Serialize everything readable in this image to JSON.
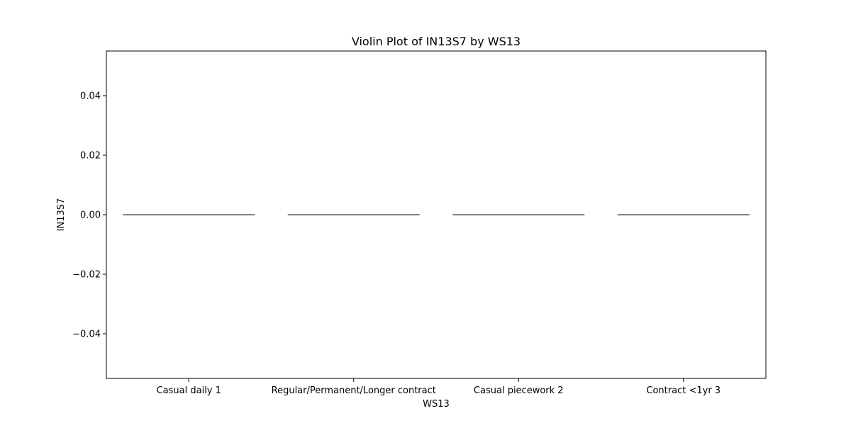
{
  "chart_data": {
    "type": "violin",
    "title": "Violin Plot of IN13S7 by WS13",
    "xlabel": "WS13",
    "ylabel": "IN13S7",
    "categories": [
      "Casual daily 1",
      "Regular/Permanent/Longer contract",
      "Casual piecework 2",
      "Contract <1yr 3"
    ],
    "values": [
      0.0,
      0.0,
      0.0,
      0.0
    ],
    "ylim": [
      -0.055,
      0.055
    ],
    "yticks": [
      0.04,
      0.02,
      0.0,
      -0.02,
      -0.04
    ],
    "ytick_labels": [
      "0.04",
      "0.02",
      "0.00",
      "−0.02",
      "−0.04"
    ],
    "grid": false,
    "legend": "none",
    "line_color": "#3a3a3a"
  }
}
